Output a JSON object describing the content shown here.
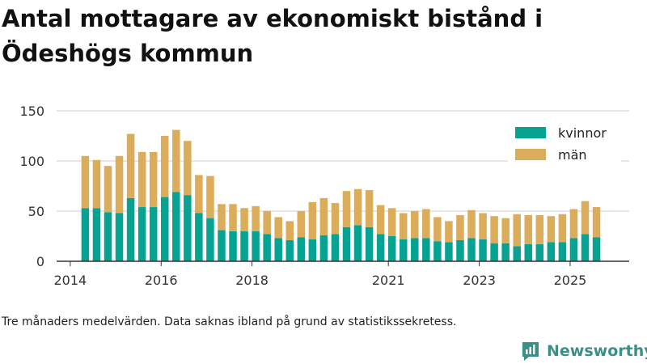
{
  "page": {
    "title": "Antal mottagare av ekonomiskt bistånd i Ödeshögs kommun",
    "note": "Tre månaders medelvärden. Data saknas ibland på grund av statistikssekretess.",
    "brand": "Newsworthy",
    "brand_icon": "newsworthy-logo-icon"
  },
  "colors": {
    "kvinnor": "#06a393",
    "man": "#dbac5a",
    "brand": "#3a8f86"
  },
  "chart_data": {
    "type": "bar",
    "stacked": true,
    "title": "Antal mottagare av ekonomiskt bistånd i Ödeshögs kommun",
    "xlabel": "",
    "ylabel": "",
    "ylim": [
      0,
      150
    ],
    "yticks": [
      0,
      50,
      100,
      150
    ],
    "xlim": [
      2013.7,
      2026.3
    ],
    "xticks": [
      {
        "value": 2014.0,
        "label": "2014"
      },
      {
        "value": 2016.0,
        "label": "2016"
      },
      {
        "value": 2018.0,
        "label": "2018"
      },
      {
        "value": 2021.0,
        "label": "2021"
      },
      {
        "value": 2023.0,
        "label": "2023"
      },
      {
        "value": 2025.0,
        "label": "2025"
      }
    ],
    "grid": true,
    "legend_position": "top-right",
    "x": [
      2014.33,
      2014.58,
      2014.83,
      2015.08,
      2015.33,
      2015.58,
      2015.83,
      2016.08,
      2016.33,
      2016.58,
      2016.83,
      2017.08,
      2017.33,
      2017.58,
      2017.83,
      2018.08,
      2018.33,
      2018.58,
      2018.83,
      2019.08,
      2019.33,
      2019.58,
      2019.83,
      2020.08,
      2020.33,
      2020.58,
      2020.83,
      2021.08,
      2021.33,
      2021.58,
      2021.83,
      2022.08,
      2022.33,
      2022.58,
      2022.83,
      2023.08,
      2023.33,
      2023.58,
      2023.83,
      2024.08,
      2024.33,
      2024.58,
      2024.83,
      2025.08,
      2025.33,
      2025.58
    ],
    "series": [
      {
        "name": "kvinnor",
        "color_key": "kvinnor",
        "values": [
          53,
          53,
          49,
          48,
          63,
          54,
          54,
          64,
          69,
          66,
          48,
          43,
          31,
          30,
          30,
          30,
          27,
          23,
          21,
          24,
          22,
          26,
          27,
          34,
          36,
          34,
          27,
          25,
          22,
          23,
          23,
          20,
          19,
          21,
          23,
          22,
          18,
          18,
          15,
          17,
          17,
          19,
          19,
          23,
          27,
          24
        ]
      },
      {
        "name": "män",
        "color_key": "man",
        "values": [
          52,
          48,
          46,
          57,
          64,
          55,
          55,
          61,
          62,
          54,
          38,
          42,
          26,
          27,
          23,
          25,
          23,
          21,
          19,
          26,
          37,
          37,
          31,
          36,
          36,
          37,
          29,
          28,
          26,
          27,
          29,
          24,
          21,
          25,
          28,
          26,
          27,
          25,
          32,
          29,
          29,
          26,
          28,
          29,
          33,
          30
        ]
      }
    ]
  }
}
